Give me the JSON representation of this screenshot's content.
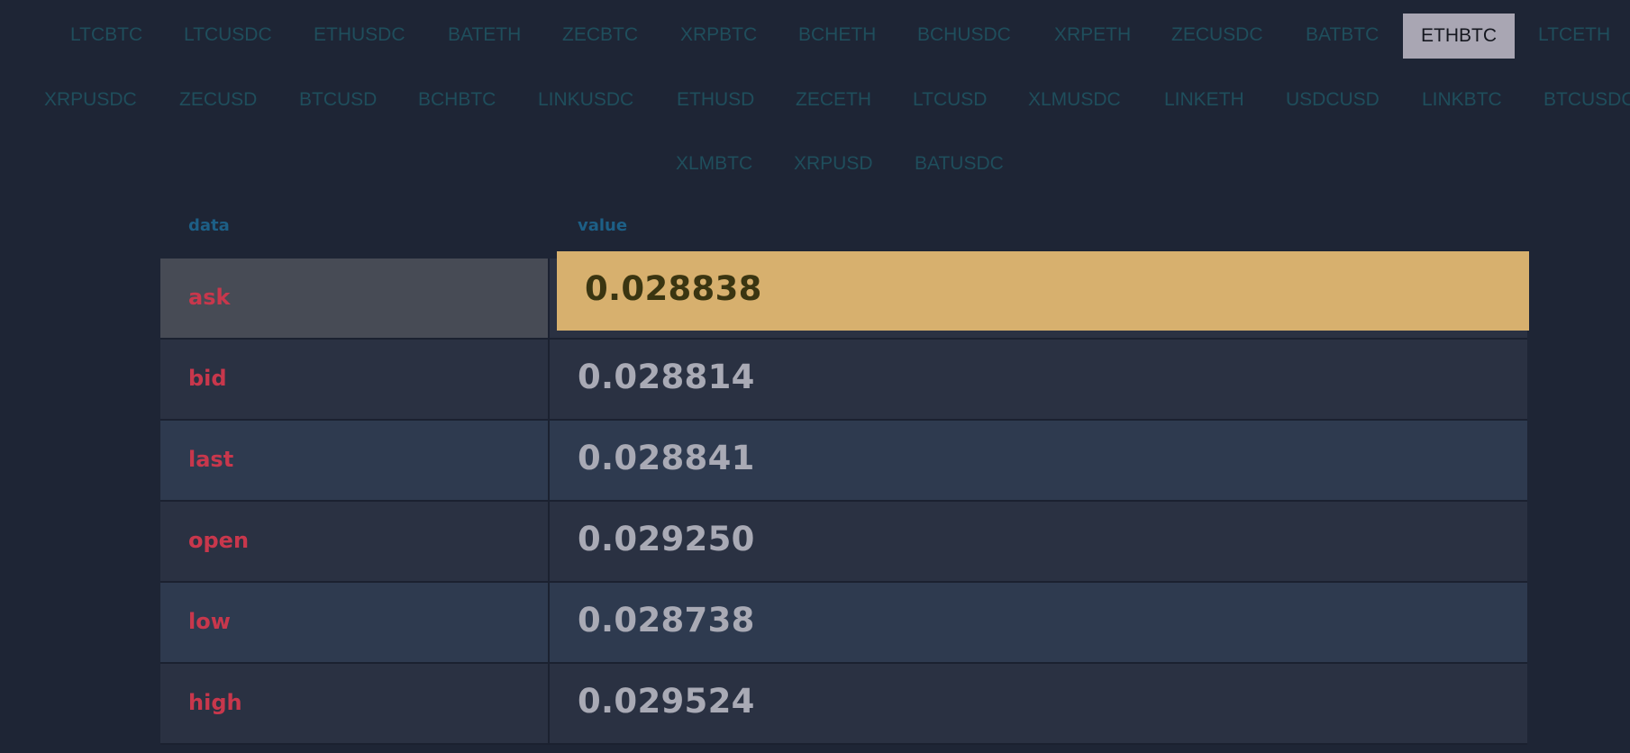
{
  "pairs": {
    "row1": [
      "LTCBTC",
      "LTCUSDC",
      "ETHUSDC",
      "BATETH",
      "ZECBTC",
      "XRPBTC",
      "BCHETH",
      "BCHUSDC",
      "XRPETH",
      "ZECUSDC",
      "BATBTC",
      "ETHBTC",
      "LTCETH"
    ],
    "row2": [
      "XRPUSDC",
      "ZECUSD",
      "BTCUSD",
      "BCHBTC",
      "LINKUSDC",
      "ETHUSD",
      "ZECETH",
      "LTCUSD",
      "XLMUSDC",
      "LINKETH",
      "USDCUSD",
      "LINKBTC",
      "BTCUSDC"
    ],
    "row3": [
      "XLMBTC",
      "XRPUSD",
      "BATUSDC"
    ],
    "selected": "ETHBTC"
  },
  "table": {
    "headers": {
      "data": "data",
      "value": "value"
    },
    "rows": [
      {
        "key": "ask",
        "value": "0.028838"
      },
      {
        "key": "bid",
        "value": "0.028814"
      },
      {
        "key": "last",
        "value": "0.028841"
      },
      {
        "key": "open",
        "value": "0.029250"
      },
      {
        "key": "low",
        "value": "0.028738"
      },
      {
        "key": "high",
        "value": "0.029524"
      }
    ]
  },
  "colors": {
    "background": "#1e2535",
    "pair_text": "#1f4e5c",
    "pair_active_bg": "#a9a6b3",
    "header_text": "#1d5f86",
    "key_text": "#c8374c",
    "value_text": "#a9aab5",
    "highlight_bg": "#d7b06e"
  }
}
